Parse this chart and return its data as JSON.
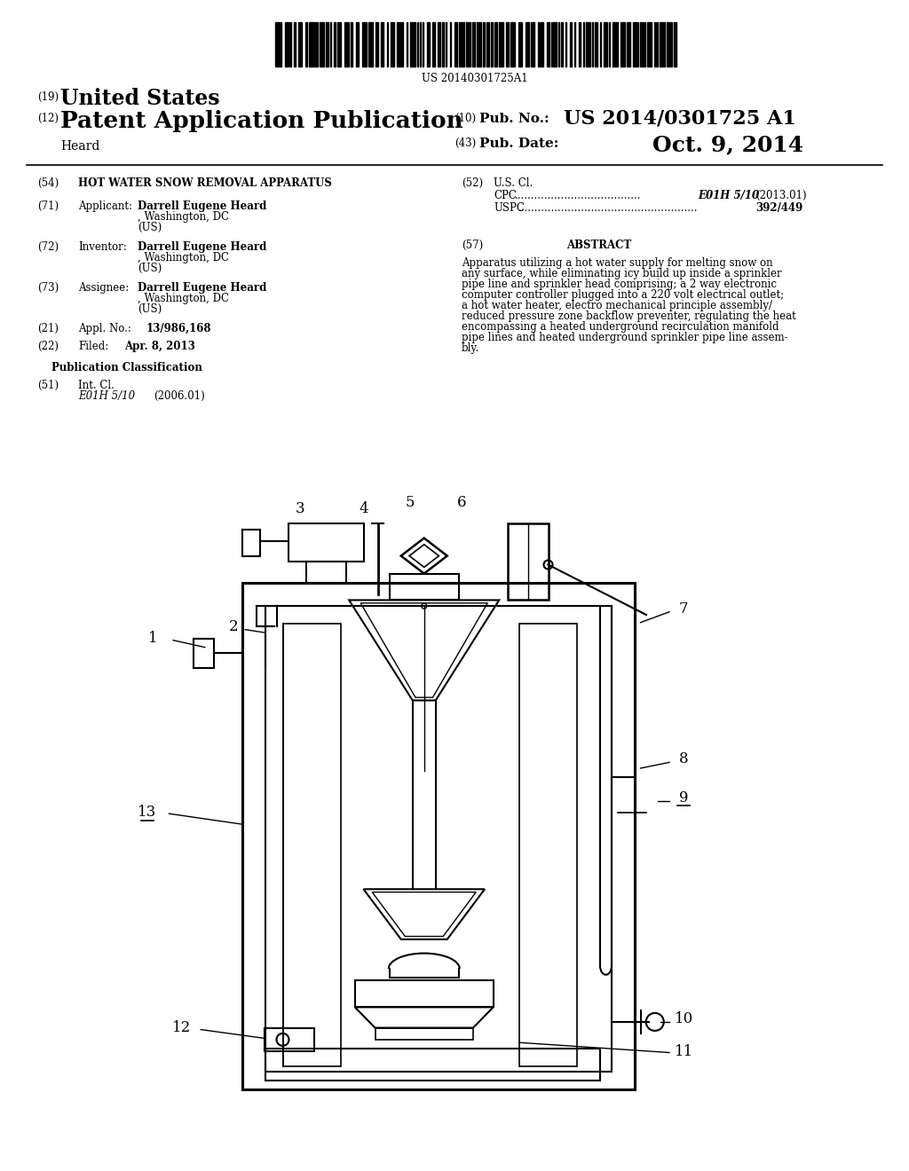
{
  "background_color": "#ffffff",
  "barcode_text": "US 20140301725A1",
  "header": {
    "number_19": "(19)",
    "united_states": "United States",
    "number_12": "(12)",
    "patent_app_pub": "Patent Application Publication",
    "heard": "Heard",
    "number_10": "(10)",
    "pub_no_label": "Pub. No.:",
    "pub_no_value": "US 2014/0301725 A1",
    "number_43": "(43)",
    "pub_date_label": "Pub. Date:",
    "pub_date_value": "Oct. 9, 2014"
  },
  "abstract_lines": [
    "Apparatus utilizing a hot water supply for melting snow on",
    "any surface, while eliminating icy build up inside a sprinkler",
    "pipe line and sprinkler head comprising; a 2 way electronic",
    "computer controller plugged into a 220 volt electrical outlet;",
    "a hot water heater, electro mechanical principle assembly/",
    "reduced pressure zone backflow preventer, regulating the heat",
    "encompassing a heated underground recirculation manifold",
    "pipe lines and heated underground sprinkler pipe line assem-",
    "bly."
  ]
}
